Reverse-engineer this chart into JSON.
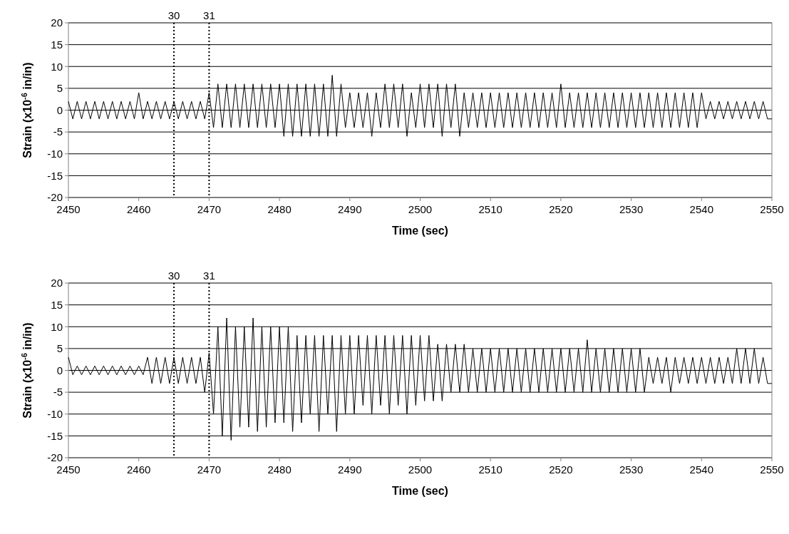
{
  "chart_data": [
    {
      "type": "line",
      "xlabel": "Time (sec)",
      "ylabel": "Strain (x10$^{-6}$ in/in)",
      "xlim": [
        2450,
        2550
      ],
      "xticks": [
        2450,
        2460,
        2470,
        2480,
        2490,
        2500,
        2510,
        2520,
        2530,
        2540,
        2550
      ],
      "ylim": [
        -20,
        20
      ],
      "yticks": [
        -20,
        -15,
        -10,
        -5,
        0,
        5,
        10,
        15,
        20
      ],
      "grid": "y",
      "marker": "none",
      "line_style": "solid",
      "ref_lines": [
        {
          "axis": "x",
          "value": 2465,
          "color": "#000000",
          "line_style": "dotted"
        },
        {
          "axis": "x",
          "value": 2470,
          "color": "#000000",
          "line_style": "dotted"
        }
      ],
      "annotations": [
        "30",
        "31"
      ],
      "x": [
        2450,
        2450.625,
        2451.25,
        2451.875,
        2452.5,
        2453.125,
        2453.75,
        2454.375,
        2455,
        2455.625,
        2456.25,
        2456.875,
        2457.5,
        2458.125,
        2458.75,
        2459.375,
        2460,
        2460.625,
        2461.25,
        2461.875,
        2462.5,
        2463.125,
        2463.75,
        2464.375,
        2465,
        2465.625,
        2466.25,
        2466.875,
        2467.5,
        2468.125,
        2468.75,
        2469.375,
        2470,
        2470.625,
        2471.25,
        2471.875,
        2472.5,
        2473.125,
        2473.75,
        2474.375,
        2475,
        2475.625,
        2476.25,
        2476.875,
        2477.5,
        2478.125,
        2478.75,
        2479.375,
        2480,
        2480.625,
        2481.25,
        2481.875,
        2482.5,
        2483.125,
        2483.75,
        2484.375,
        2485,
        2485.625,
        2486.25,
        2486.875,
        2487.5,
        2488.125,
        2488.75,
        2489.375,
        2490,
        2490.625,
        2491.25,
        2491.875,
        2492.5,
        2493.125,
        2493.75,
        2494.375,
        2495,
        2495.625,
        2496.25,
        2496.875,
        2497.5,
        2498.125,
        2498.75,
        2499.375,
        2500,
        2500.625,
        2501.25,
        2501.875,
        2502.5,
        2503.125,
        2503.75,
        2504.375,
        2505,
        2505.625,
        2506.25,
        2506.875,
        2507.5,
        2508.125,
        2508.75,
        2509.375,
        2510,
        2510.625,
        2511.25,
        2511.875,
        2512.5,
        2513.125,
        2513.75,
        2514.375,
        2515,
        2515.625,
        2516.25,
        2516.875,
        2517.5,
        2518.125,
        2518.75,
        2519.375,
        2520,
        2520.625,
        2521.25,
        2521.875,
        2522.5,
        2523.125,
        2523.75,
        2524.375,
        2525,
        2525.625,
        2526.25,
        2526.875,
        2527.5,
        2528.125,
        2528.75,
        2529.375,
        2530,
        2530.625,
        2531.25,
        2531.875,
        2532.5,
        2533.125,
        2533.75,
        2534.375,
        2535,
        2535.625,
        2536.25,
        2536.875,
        2537.5,
        2538.125,
        2538.75,
        2539.375,
        2540,
        2540.625,
        2541.25,
        2541.875,
        2542.5,
        2543.125,
        2543.75,
        2544.375,
        2545,
        2545.625,
        2546.25,
        2546.875,
        2547.5,
        2548.125,
        2548.75,
        2549.375,
        2550
      ],
      "series": [
        {
          "color": "#000000",
          "values": [
            2,
            -2,
            2,
            -2,
            2,
            -2,
            2,
            -2,
            2,
            -2,
            2,
            -2,
            2,
            -2,
            2,
            -2,
            4,
            -2,
            2,
            -2,
            2,
            -2,
            2,
            -2,
            2,
            -2,
            2,
            -2,
            2,
            -2,
            2,
            -2,
            4,
            -4,
            6,
            -4,
            6,
            -4,
            6,
            -4,
            6,
            -4,
            6,
            -4,
            6,
            -4,
            6,
            -4,
            6,
            -6,
            6,
            -6,
            6,
            -6,
            6,
            -6,
            6,
            -6,
            6,
            -6,
            8,
            -6,
            6,
            -4,
            4,
            -4,
            4,
            -4,
            4,
            -6,
            4,
            -4,
            6,
            -4,
            6,
            -4,
            6,
            -6,
            4,
            -4,
            6,
            -4,
            6,
            -4,
            6,
            -6,
            6,
            -4,
            6,
            -6,
            4,
            -4,
            4,
            -4,
            4,
            -4,
            4,
            -4,
            4,
            -4,
            4,
            -4,
            4,
            -4,
            4,
            -4,
            4,
            -4,
            4,
            -4,
            4,
            -4,
            6,
            -4,
            4,
            -4,
            4,
            -4,
            4,
            -4,
            4,
            -4,
            4,
            -4,
            4,
            -4,
            4,
            -4,
            4,
            -4,
            4,
            -4,
            4,
            -4,
            4,
            -4,
            4,
            -4,
            4,
            -4,
            4,
            -4,
            4,
            -4,
            4,
            -2,
            2,
            -2,
            2,
            -2,
            2,
            -2,
            2,
            -2,
            2,
            -2,
            2,
            -2,
            2,
            -2,
            -2
          ]
        }
      ]
    },
    {
      "type": "line",
      "xlabel": "Time (sec)",
      "ylabel": "Strain (x10$^{-6}$ in/in)",
      "xlim": [
        2450,
        2550
      ],
      "xticks": [
        2450,
        2460,
        2470,
        2480,
        2490,
        2500,
        2510,
        2520,
        2530,
        2540,
        2550
      ],
      "ylim": [
        -20,
        20
      ],
      "yticks": [
        -20,
        -15,
        -10,
        -5,
        0,
        5,
        10,
        15,
        20
      ],
      "grid": "y",
      "marker": "none",
      "line_style": "solid",
      "ref_lines": [
        {
          "axis": "x",
          "value": 2465,
          "color": "#000000",
          "line_style": "dotted"
        },
        {
          "axis": "x",
          "value": 2470,
          "color": "#000000",
          "line_style": "dotted"
        }
      ],
      "annotations": [
        "30",
        "31"
      ],
      "x": [
        2450,
        2450.625,
        2451.25,
        2451.875,
        2452.5,
        2453.125,
        2453.75,
        2454.375,
        2455,
        2455.625,
        2456.25,
        2456.875,
        2457.5,
        2458.125,
        2458.75,
        2459.375,
        2460,
        2460.625,
        2461.25,
        2461.875,
        2462.5,
        2463.125,
        2463.75,
        2464.375,
        2465,
        2465.625,
        2466.25,
        2466.875,
        2467.5,
        2468.125,
        2468.75,
        2469.375,
        2470,
        2470.625,
        2471.25,
        2471.875,
        2472.5,
        2473.125,
        2473.75,
        2474.375,
        2475,
        2475.625,
        2476.25,
        2476.875,
        2477.5,
        2478.125,
        2478.75,
        2479.375,
        2480,
        2480.625,
        2481.25,
        2481.875,
        2482.5,
        2483.125,
        2483.75,
        2484.375,
        2485,
        2485.625,
        2486.25,
        2486.875,
        2487.5,
        2488.125,
        2488.75,
        2489.375,
        2490,
        2490.625,
        2491.25,
        2491.875,
        2492.5,
        2493.125,
        2493.75,
        2494.375,
        2495,
        2495.625,
        2496.25,
        2496.875,
        2497.5,
        2498.125,
        2498.75,
        2499.375,
        2500,
        2500.625,
        2501.25,
        2501.875,
        2502.5,
        2503.125,
        2503.75,
        2504.375,
        2505,
        2505.625,
        2506.25,
        2506.875,
        2507.5,
        2508.125,
        2508.75,
        2509.375,
        2510,
        2510.625,
        2511.25,
        2511.875,
        2512.5,
        2513.125,
        2513.75,
        2514.375,
        2515,
        2515.625,
        2516.25,
        2516.875,
        2517.5,
        2518.125,
        2518.75,
        2519.375,
        2520,
        2520.625,
        2521.25,
        2521.875,
        2522.5,
        2523.125,
        2523.75,
        2524.375,
        2525,
        2525.625,
        2526.25,
        2526.875,
        2527.5,
        2528.125,
        2528.75,
        2529.375,
        2530,
        2530.625,
        2531.25,
        2531.875,
        2532.5,
        2533.125,
        2533.75,
        2534.375,
        2535,
        2535.625,
        2536.25,
        2536.875,
        2537.5,
        2538.125,
        2538.75,
        2539.375,
        2540,
        2540.625,
        2541.25,
        2541.875,
        2542.5,
        2543.125,
        2543.75,
        2544.375,
        2545,
        2545.625,
        2546.25,
        2546.875,
        2547.5,
        2548.125,
        2548.75,
        2549.375,
        2550
      ],
      "series": [
        {
          "color": "#000000",
          "values": [
            3,
            -1,
            1,
            -1,
            1,
            -1,
            1,
            -1,
            1,
            -1,
            1,
            -1,
            1,
            -1,
            1,
            -1,
            1,
            -1,
            3,
            -3,
            3,
            -3,
            3,
            -3,
            3,
            -3,
            3,
            -3,
            3,
            -3,
            3,
            -5,
            4,
            -10,
            10,
            -15,
            12,
            -16,
            10,
            -13,
            10,
            -13,
            12,
            -14,
            10,
            -13,
            10,
            -12,
            10,
            -12,
            10,
            -14,
            8,
            -12,
            8,
            -10,
            8,
            -14,
            8,
            -10,
            8,
            -14,
            8,
            -10,
            8,
            -10,
            8,
            -8,
            8,
            -10,
            8,
            -8,
            8,
            -10,
            8,
            -8,
            8,
            -10,
            8,
            -8,
            8,
            -7,
            8,
            -7,
            6,
            -7,
            6,
            -5,
            6,
            -5,
            6,
            -5,
            5,
            -5,
            5,
            -5,
            5,
            -5,
            5,
            -5,
            5,
            -5,
            5,
            -5,
            5,
            -5,
            5,
            -5,
            5,
            -5,
            5,
            -5,
            5,
            -5,
            5,
            -5,
            5,
            -5,
            7,
            -5,
            5,
            -5,
            5,
            -5,
            5,
            -5,
            5,
            -5,
            5,
            -5,
            5,
            -5,
            3,
            -3,
            3,
            -3,
            3,
            -5,
            3,
            -3,
            3,
            -3,
            3,
            -3,
            3,
            -3,
            3,
            -3,
            3,
            -3,
            3,
            -3,
            5,
            -3,
            5,
            -3,
            5,
            -3,
            3,
            -3,
            -3
          ]
        }
      ]
    }
  ]
}
